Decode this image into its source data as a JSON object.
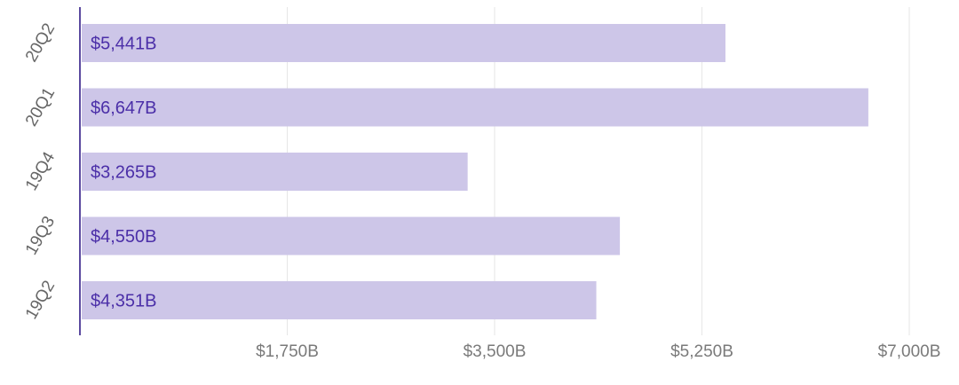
{
  "chart_data": {
    "type": "bar",
    "orientation": "horizontal",
    "categories": [
      "20Q2",
      "20Q1",
      "19Q4",
      "19Q3",
      "19Q2"
    ],
    "values": [
      5441,
      6647,
      3265,
      4550,
      4351
    ],
    "data_labels": [
      "$5,441B",
      "$6,647B",
      "$3,265B",
      "$4,550B",
      "$4,351B"
    ],
    "x_ticks": [
      1750,
      3500,
      5250,
      7000
    ],
    "x_tick_labels": [
      "$1,750B",
      "$3,500B",
      "$5,250B",
      "$7,000B"
    ],
    "xlim": [
      0,
      7000
    ],
    "grid": true,
    "legend": "none",
    "colors": {
      "bar": "#cdc6e8",
      "label": "#4b2fa8",
      "axis": "#5b4aa0",
      "grid": "#e6e6e6"
    }
  }
}
